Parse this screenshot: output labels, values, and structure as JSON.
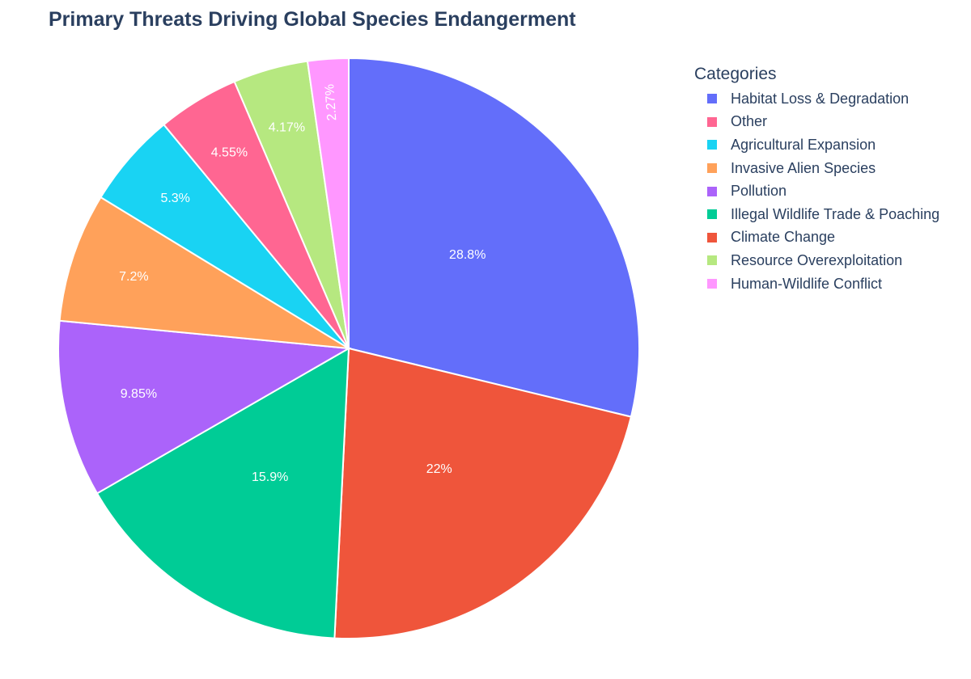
{
  "chart_data": {
    "type": "pie",
    "title": "Primary Threats Driving Global Species Endangerment",
    "legend_title": "Categories",
    "legend_position": "right",
    "sort": "descending, clockwise from top",
    "slices": [
      {
        "label": "Habitat Loss & Degradation",
        "percent": 28.8,
        "display": "28.8%",
        "color": "#636EFA"
      },
      {
        "label": "Climate Change",
        "percent": 22.0,
        "display": "22%",
        "color": "#EF553B"
      },
      {
        "label": "Illegal Wildlife Trade & Poaching",
        "percent": 15.9,
        "display": "15.9%",
        "color": "#00CC96"
      },
      {
        "label": "Pollution",
        "percent": 9.85,
        "display": "9.85%",
        "color": "#AB63FA"
      },
      {
        "label": "Invasive Alien Species",
        "percent": 7.2,
        "display": "7.2%",
        "color": "#FFA15A"
      },
      {
        "label": "Agricultural Expansion",
        "percent": 5.3,
        "display": "5.3%",
        "color": "#19D3F3"
      },
      {
        "label": "Other",
        "percent": 4.55,
        "display": "4.55%",
        "color": "#FF6692"
      },
      {
        "label": "Resource Overexploitation",
        "percent": 4.17,
        "display": "4.17%",
        "color": "#B6E880"
      },
      {
        "label": "Human-Wildlife Conflict",
        "percent": 2.27,
        "display": "2.27%",
        "color": "#FF97FF"
      }
    ],
    "draw_order": [
      0,
      6,
      5,
      4,
      3,
      2,
      1,
      7,
      8
    ]
  }
}
